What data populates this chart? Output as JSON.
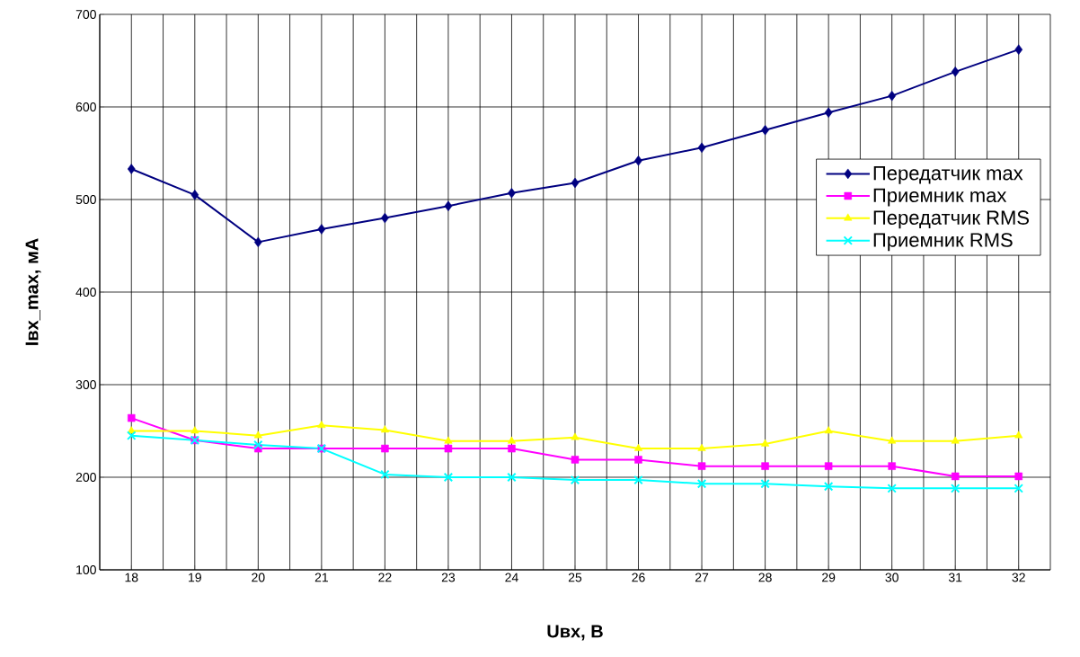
{
  "chart_data": {
    "type": "line",
    "xlabel": "Uвх, В",
    "ylabel": "Iвх_max, мА",
    "categories": [
      "18",
      "19",
      "20",
      "21",
      "22",
      "23",
      "24",
      "25",
      "26",
      "27",
      "28",
      "29",
      "30",
      "31",
      "32"
    ],
    "ylim": [
      100,
      700
    ],
    "yticks": [
      100,
      200,
      300,
      400,
      500,
      600,
      700
    ],
    "grid": true,
    "legend": "right",
    "line_style": "solid",
    "series": [
      {
        "name": "Передатчик max",
        "color": "#000080",
        "marker": "diamond",
        "values": [
          533,
          505,
          454,
          468,
          480,
          493,
          507,
          518,
          542,
          556,
          575,
          594,
          612,
          638,
          662
        ]
      },
      {
        "name": "Приемник max",
        "color": "#ff00ff",
        "marker": "square",
        "values": [
          264,
          240,
          231,
          231,
          231,
          231,
          231,
          219,
          219,
          212,
          212,
          212,
          212,
          201,
          201
        ]
      },
      {
        "name": "Передатчик RMS",
        "color": "#ffff00",
        "marker": "triangle",
        "values": [
          250,
          250,
          245,
          256,
          251,
          239,
          239,
          243,
          231,
          231,
          236,
          250,
          239,
          239,
          245
        ]
      },
      {
        "name": "Приемник RMS",
        "color": "#00ffff",
        "marker": "cross",
        "values": [
          245,
          240,
          235,
          231,
          203,
          200,
          200,
          197,
          197,
          193,
          193,
          190,
          188,
          188,
          188
        ]
      }
    ]
  }
}
